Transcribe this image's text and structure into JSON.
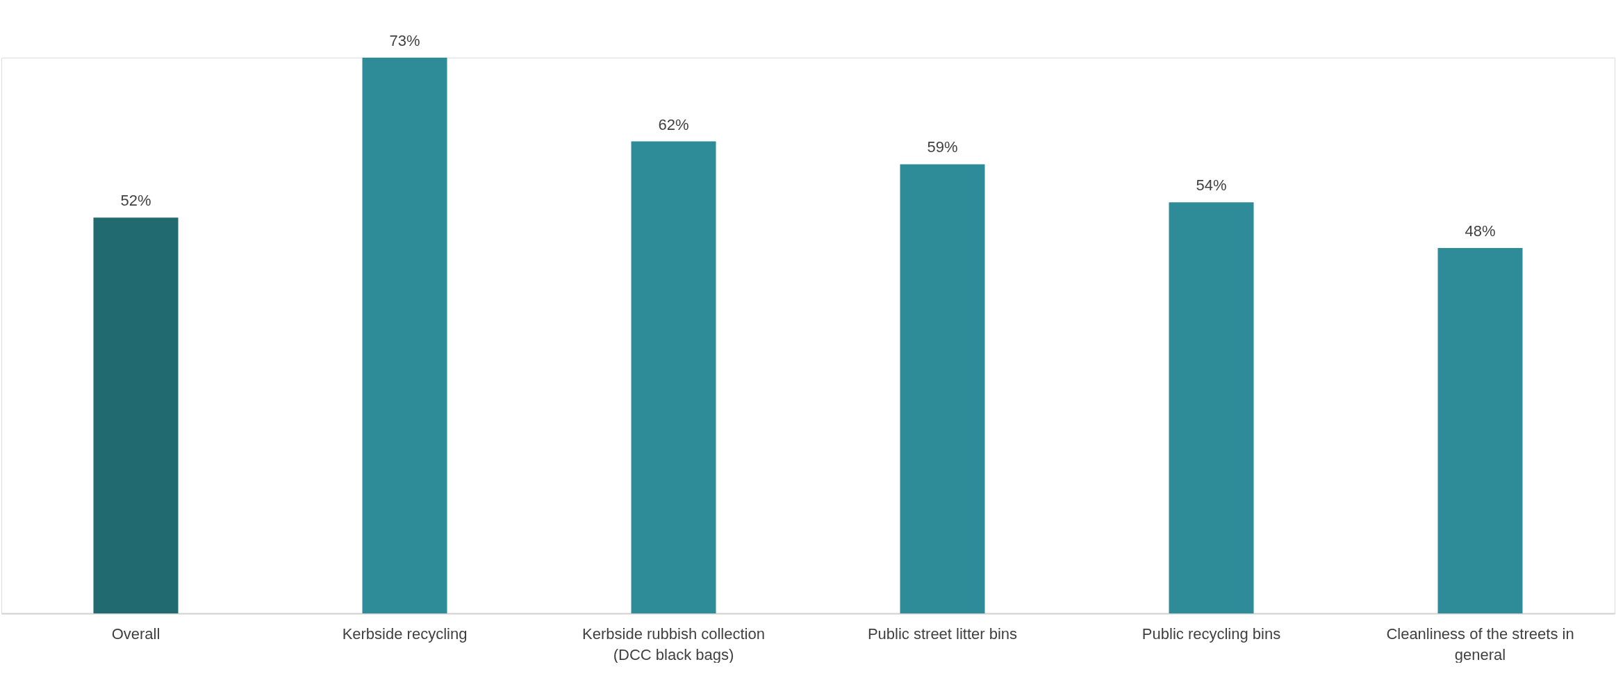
{
  "chart_data": {
    "type": "bar",
    "categories": [
      "Overall",
      "Kerbside recycling",
      "Kerbside rubbish collection (DCC black bags)",
      "Public street litter bins",
      "Public recycling bins",
      "Cleanliness of the streets in general"
    ],
    "values": [
      52,
      73,
      62,
      59,
      54,
      48
    ],
    "colors": [
      "#216a6f",
      "#2e8b98",
      "#2e8b98",
      "#2e8b98",
      "#2e8b98",
      "#2e8b98"
    ],
    "relative": false,
    "value_labels": [
      "52%",
      "73%",
      "62%",
      "59%",
      "54%",
      "48%"
    ],
    "grid": false,
    "legend": false
  }
}
